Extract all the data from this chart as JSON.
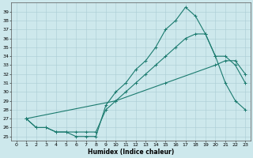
{
  "xlabel": "Humidex (Indice chaleur)",
  "bg_color": "#cde8ec",
  "line_color": "#1a7a6e",
  "grid_color": "#aacdd4",
  "xlim": [
    -0.5,
    23.5
  ],
  "ylim": [
    24.5,
    40.0
  ],
  "yticks": [
    25,
    26,
    27,
    28,
    29,
    30,
    31,
    32,
    33,
    34,
    35,
    36,
    37,
    38,
    39
  ],
  "xticks": [
    0,
    1,
    2,
    3,
    4,
    5,
    6,
    7,
    8,
    9,
    10,
    11,
    12,
    13,
    14,
    15,
    16,
    17,
    18,
    19,
    20,
    21,
    22,
    23
  ],
  "curve1_x": [
    1,
    2,
    3,
    4,
    5,
    6,
    7,
    8,
    9,
    10,
    11,
    12,
    13,
    14,
    15,
    16,
    17,
    18,
    19,
    20,
    21,
    22,
    23
  ],
  "curve1_y": [
    27,
    26,
    26,
    25.5,
    25.5,
    25,
    25,
    25,
    28.5,
    30,
    31,
    32.5,
    33.5,
    35,
    37,
    38,
    39.5,
    38.5,
    36.5,
    34,
    31,
    29,
    28
  ],
  "curve2_x": [
    1,
    2,
    3,
    4,
    5,
    6,
    7,
    8,
    9,
    10,
    11,
    12,
    13,
    14,
    15,
    16,
    17,
    18,
    19,
    20,
    21,
    22,
    23
  ],
  "curve2_y": [
    27,
    26,
    26,
    25.5,
    25.5,
    25.5,
    25.5,
    25.5,
    28,
    29,
    30,
    31,
    32,
    33,
    34,
    35,
    36,
    36.5,
    36.5,
    34,
    34,
    33,
    31
  ],
  "curve3_x": [
    1,
    10,
    15,
    20,
    21,
    22,
    23
  ],
  "curve3_y": [
    27,
    29,
    31,
    33,
    33.5,
    33.5,
    32
  ]
}
